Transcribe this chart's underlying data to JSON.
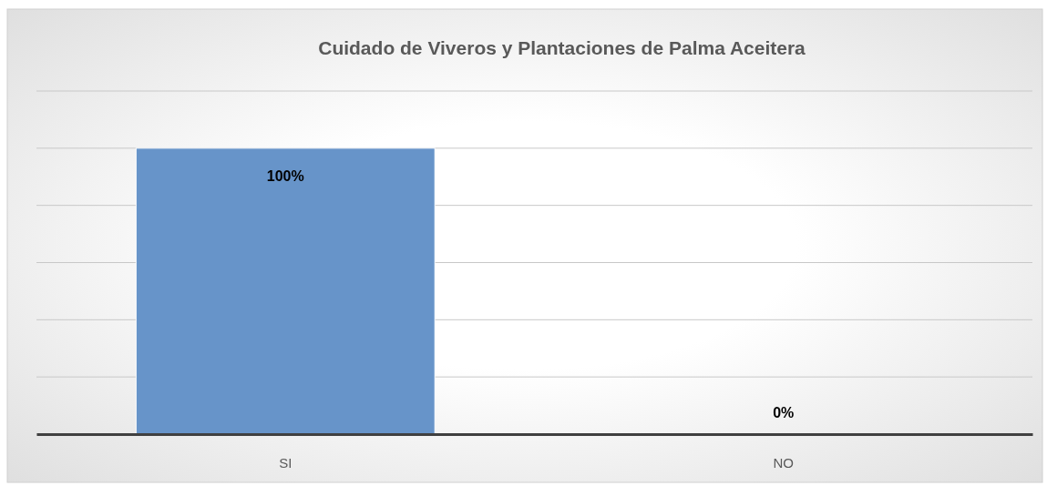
{
  "chart_data": {
    "type": "bar",
    "title": "Cuidado de Viveros y Plantaciones de Palma Aceitera",
    "categories": [
      "SI",
      "NO"
    ],
    "values": [
      100,
      0
    ],
    "value_labels": [
      "100%",
      "0%"
    ],
    "color": "#6794c9",
    "ylim": [
      0,
      120
    ],
    "yticks": [
      {
        "value": 0,
        "label": null
      },
      {
        "value": 20,
        "label": null
      },
      {
        "value": 40,
        "label": null
      },
      {
        "value": 60,
        "label": null
      },
      {
        "value": 80,
        "label": null
      },
      {
        "value": 100,
        "label": null
      },
      {
        "value": 120,
        "label": null
      }
    ],
    "grid": "y",
    "tick_labels": "x"
  }
}
